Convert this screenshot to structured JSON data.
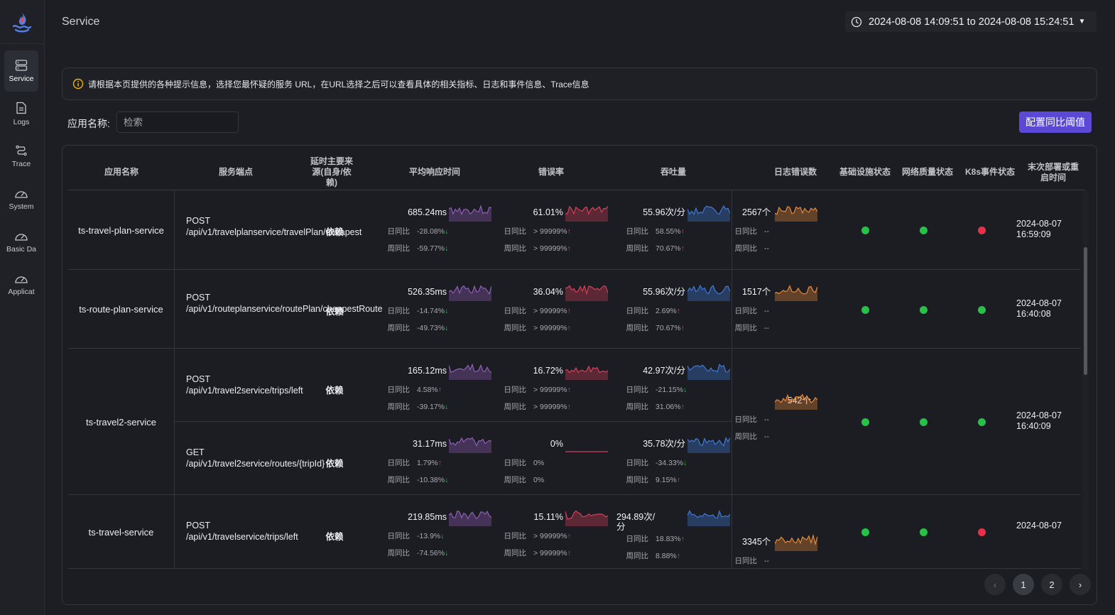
{
  "app": {
    "page_title": "Service",
    "time_range": "2024-08-08 14:09:51 to 2024-08-08 15:24:51"
  },
  "sidebar": {
    "items": [
      {
        "label": "Service",
        "icon": "server-icon"
      },
      {
        "label": "Logs",
        "icon": "file-icon"
      },
      {
        "label": "Trace",
        "icon": "route-icon"
      },
      {
        "label": "System",
        "icon": "gauge-icon"
      },
      {
        "label": "Basic Da",
        "icon": "gauge-icon"
      },
      {
        "label": "Applicat",
        "icon": "gauge-icon"
      }
    ]
  },
  "info": {
    "text": "请根据本页提供的各种提示信息，选择您最怀疑的服务 URL，在URL选择之后可以查看具体的相关指标、日志和事件信息、Trace信息"
  },
  "filter": {
    "label": "应用名称:",
    "placeholder": "检索",
    "config_button": "配置同比阈值"
  },
  "columns": [
    "应用名称",
    "服务端点",
    "延时主要来源(自身/依赖)",
    "平均响应时间",
    "错误率",
    "吞吐量",
    "日志错误数",
    "基础设施状态",
    "网络质量状态",
    "K8s事件状态",
    "末次部署或重启时间"
  ],
  "labels": {
    "day": "日同比",
    "week": "周同比"
  },
  "services": [
    {
      "name": "ts-travel-plan-service",
      "endpoints": [
        {
          "endpoint": "POST /api/v1/travelplanservice/travelPlan/cheapest",
          "source": "依赖",
          "latency": {
            "value": "685.24ms",
            "day": "-28.08%",
            "day_dir": "down",
            "week": "-59.77%",
            "week_dir": "down"
          },
          "error": {
            "value": "61.01%",
            "day": "> 99999%",
            "day_dir": "up",
            "week": "> 99999%",
            "week_dir": "up"
          },
          "throughput": {
            "value": "55.96次/分",
            "day": "58.55%",
            "day_dir": "up",
            "week": "70.67%",
            "week_dir": "up"
          }
        }
      ],
      "logs": {
        "value": "2567个",
        "day": "--",
        "week": "--"
      },
      "infra": "ok",
      "network": "ok",
      "k8s": "bad",
      "deploy": "2024-08-07 16:59:09"
    },
    {
      "name": "ts-route-plan-service",
      "endpoints": [
        {
          "endpoint": "POST /api/v1/routeplanservice/routePlan/cheapestRoute",
          "source": "依赖",
          "latency": {
            "value": "526.35ms",
            "day": "-14.74%",
            "day_dir": "down",
            "week": "-49.73%",
            "week_dir": "down"
          },
          "error": {
            "value": "36.04%",
            "day": "> 99999%",
            "day_dir": "up",
            "week": "> 99999%",
            "week_dir": "up"
          },
          "throughput": {
            "value": "55.96次/分",
            "day": "2.69%",
            "day_dir": "up",
            "week": "70.67%",
            "week_dir": "up"
          }
        }
      ],
      "logs": {
        "value": "1517个",
        "day": "--",
        "week": "--"
      },
      "infra": "ok",
      "network": "ok",
      "k8s": "ok",
      "deploy": "2024-08-07 16:40:08"
    },
    {
      "name": "ts-travel2-service",
      "endpoints": [
        {
          "endpoint": "POST /api/v1/travel2service/trips/left",
          "source": "依赖",
          "latency": {
            "value": "165.12ms",
            "day": "4.58%",
            "day_dir": "up",
            "week": "-39.17%",
            "week_dir": "down"
          },
          "error": {
            "value": "16.72%",
            "day": "> 99999%",
            "day_dir": "up",
            "week": "> 99999%",
            "week_dir": "up"
          },
          "throughput": {
            "value": "42.97次/分",
            "day": "-21.15%",
            "day_dir": "down",
            "week": "31.06%",
            "week_dir": "up"
          }
        },
        {
          "endpoint": "GET /api/v1/travel2service/routes/{tripId}",
          "source": "依赖",
          "latency": {
            "value": "31.17ms",
            "day": "1.79%",
            "day_dir": "up",
            "week": "-10.38%",
            "week_dir": "down"
          },
          "error": {
            "value": "0%",
            "day": "0%",
            "day_dir": "",
            "week": "0%",
            "week_dir": ""
          },
          "throughput": {
            "value": "35.78次/分",
            "day": "-34.33%",
            "day_dir": "down",
            "week": "9.15%",
            "week_dir": "up"
          }
        }
      ],
      "logs": {
        "value": "542个",
        "day": "--",
        "week": "--"
      },
      "infra": "ok",
      "network": "ok",
      "k8s": "ok",
      "deploy": "2024-08-07 16:40:09"
    },
    {
      "name": "ts-travel-service",
      "endpoints": [
        {
          "endpoint": "POST /api/v1/travelservice/trips/left",
          "source": "依赖",
          "latency": {
            "value": "219.85ms",
            "day": "-13.9%",
            "day_dir": "down",
            "week": "-74.56%",
            "week_dir": "down"
          },
          "error": {
            "value": "15.11%",
            "day": "> 99999%",
            "day_dir": "up",
            "week": "> 99999%",
            "week_dir": "up"
          },
          "throughput": {
            "value": "294.89次/分",
            "day": "18.83%",
            "day_dir": "up",
            "week": "8.88%",
            "week_dir": "up"
          }
        }
      ],
      "logs": {
        "value": "3345个",
        "day": "--",
        "week": "--"
      },
      "infra": "ok",
      "network": "ok",
      "k8s": "bad",
      "deploy": "2024-08-07"
    }
  ],
  "pagination": {
    "pages": [
      "1",
      "2"
    ],
    "current": "1",
    "prev": "‹",
    "next": "›"
  },
  "colors": {
    "latency": "#8e5fb8",
    "error": "#d6405a",
    "throughput": "#3d7ad9",
    "logs": "#e8893a",
    "accent": "#5b49d6"
  }
}
